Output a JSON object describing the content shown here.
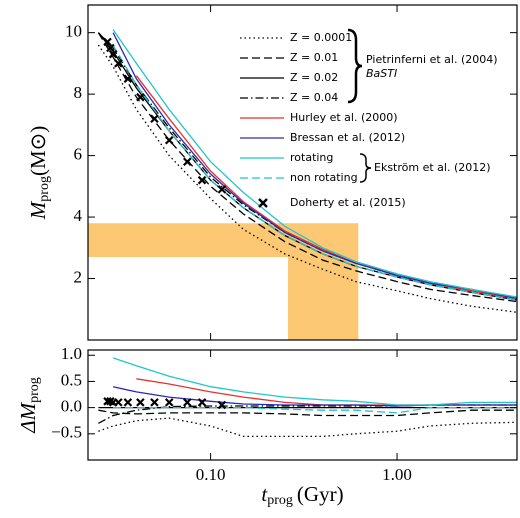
{
  "chart_data": [
    {
      "type": "line",
      "y_label": {
        "symbol": "M",
        "subscript": "prog",
        "unit": "(M⊙)"
      },
      "annotations": [
        "Pietrinferni et al. (2004)",
        "BaSTI",
        "Ekström et al. (2012)"
      ],
      "xlim": [
        0.022,
        4.4
      ],
      "ylim": [
        0,
        10.9
      ],
      "log_x": true,
      "xticks": [
        0.1,
        1
      ],
      "yticks": [
        2,
        4,
        6,
        8,
        10
      ],
      "shaded": {
        "color": "#fdc873",
        "mass_range": [
          2.7,
          3.8
        ],
        "age_range": [
          0.26,
          0.62
        ]
      },
      "x": [
        0.025,
        0.03,
        0.04,
        0.06,
        0.1,
        0.15,
        0.25,
        0.4,
        0.6,
        1.0,
        1.5,
        2.5,
        4.4
      ],
      "series": [
        {
          "name": "Z = 0.0001",
          "color": "#000000",
          "dash": "dotted",
          "values": [
            9.6,
            8.9,
            7.5,
            6.0,
            4.6,
            3.6,
            2.8,
            2.3,
            1.9,
            1.6,
            1.35,
            1.1,
            0.9
          ]
        },
        {
          "name": "Z = 0.01",
          "color": "#000000",
          "dash": "dashed",
          "values": [
            10.0,
            9.2,
            7.9,
            6.5,
            5.0,
            4.1,
            3.2,
            2.6,
            2.25,
            1.9,
            1.65,
            1.45,
            1.25
          ]
        },
        {
          "name": "Z = 0.02",
          "color": "#000000",
          "dash": "solid",
          "values": [
            10.0,
            9.4,
            8.2,
            6.8,
            5.2,
            4.3,
            3.4,
            2.8,
            2.4,
            2.05,
            1.8,
            1.55,
            1.3
          ]
        },
        {
          "name": "Z = 0.04",
          "color": "#000000",
          "dash": "dashdot",
          "values": [
            10.0,
            9.5,
            8.3,
            6.9,
            5.3,
            4.4,
            3.5,
            2.9,
            2.5,
            2.1,
            1.85,
            1.6,
            1.35
          ]
        },
        {
          "name": "Hurley et al. (2000)",
          "color": "#e8312f",
          "dash": "solid",
          "values": [
            null,
            null,
            8.6,
            7.2,
            5.5,
            4.5,
            3.55,
            2.95,
            2.5,
            2.15,
            1.85,
            1.6,
            1.35
          ]
        },
        {
          "name": "Bressan et al. (2012)",
          "color": "#2a2ab0",
          "dash": "solid",
          "values": [
            null,
            10.0,
            8.5,
            7.0,
            5.4,
            4.45,
            3.5,
            2.9,
            2.5,
            2.1,
            1.85,
            1.65,
            1.35
          ]
        },
        {
          "name": "rotating",
          "color": "#22c5c8",
          "dash": "solid",
          "values": [
            null,
            10.1,
            9.0,
            7.5,
            5.8,
            4.8,
            3.7,
            3.0,
            2.55,
            2.15,
            1.9,
            1.65,
            1.4
          ]
        },
        {
          "name": "non rotating",
          "color": "#22c5c8",
          "dash": "dashed",
          "values": [
            null,
            9.6,
            8.3,
            6.8,
            5.2,
            4.3,
            3.4,
            2.8,
            2.4,
            2.05,
            1.8,
            1.55,
            1.3
          ]
        },
        {
          "name": "Doherty et al. (2015)",
          "color": "#000000",
          "marker": "x",
          "x": [
            0.028,
            0.029,
            0.03,
            0.032,
            0.036,
            0.042,
            0.05,
            0.06,
            0.075,
            0.09,
            0.115
          ],
          "values": [
            9.7,
            9.5,
            9.3,
            9.0,
            8.5,
            7.9,
            7.2,
            6.5,
            5.8,
            5.2,
            4.9
          ]
        }
      ]
    },
    {
      "type": "line",
      "x_label": {
        "symbol": "t",
        "subscript": "prog",
        "unit": "(Gyr)"
      },
      "y_label": {
        "symbol": "ΔM",
        "subscript": "prog"
      },
      "xlim": [
        0.022,
        4.4
      ],
      "ylim": [
        -1.0,
        1.1
      ],
      "log_x": true,
      "xticks": [
        {
          "value": 0.1,
          "label": "0.10"
        },
        {
          "value": 1,
          "label": "1.00"
        }
      ],
      "yticks": [
        {
          "value": -0.5,
          "label": "−0.5"
        },
        {
          "value": 0,
          "label": "0.0"
        },
        {
          "value": 0.5,
          "label": "0.5"
        },
        {
          "value": 1.0,
          "label": "1.0"
        }
      ],
      "x": [
        0.025,
        0.03,
        0.04,
        0.06,
        0.1,
        0.15,
        0.25,
        0.4,
        0.6,
        1.0,
        1.5,
        2.5,
        4.4
      ],
      "series": [
        {
          "color": "#000000",
          "dash": "dotted",
          "values": [
            -0.45,
            -0.35,
            -0.25,
            -0.2,
            -0.35,
            -0.55,
            -0.55,
            -0.55,
            -0.5,
            -0.45,
            -0.35,
            -0.3,
            -0.28
          ]
        },
        {
          "color": "#000000",
          "dash": "dashed",
          "values": [
            -0.05,
            -0.1,
            -0.12,
            -0.1,
            -0.1,
            -0.1,
            -0.12,
            -0.15,
            -0.15,
            -0.15,
            -0.1,
            -0.05,
            -0.05
          ]
        },
        {
          "color": "#000000",
          "dash": "solid",
          "values": [
            0,
            0,
            0,
            0,
            0,
            0,
            0,
            0,
            0,
            0,
            0,
            0,
            0
          ]
        },
        {
          "color": "#000000",
          "dash": "dashdot",
          "values": [
            -0.3,
            -0.15,
            -0.05,
            0.02,
            0.03,
            0.03,
            0.03,
            0.03,
            0.03,
            0.03,
            0.05,
            0.05,
            0.05
          ]
        },
        {
          "color": "#e8312f",
          "dash": "solid",
          "values": [
            null,
            null,
            0.55,
            0.45,
            0.3,
            0.2,
            0.1,
            0.05,
            0.05,
            0.05,
            0.05,
            0.05,
            0.05
          ]
        },
        {
          "color": "#2a2ab0",
          "dash": "solid",
          "values": [
            null,
            0.4,
            0.3,
            0.2,
            0.12,
            0.07,
            0.05,
            0.05,
            0.05,
            0.03,
            0.05,
            0.05,
            0.05
          ]
        },
        {
          "color": "#22c5c8",
          "dash": "solid",
          "values": [
            null,
            0.95,
            0.8,
            0.6,
            0.4,
            0.3,
            0.2,
            0.15,
            0.12,
            0.05,
            0.05,
            0.1,
            0.1
          ]
        },
        {
          "color": "#22c5c8",
          "dash": "dashed",
          "values": [
            null,
            0,
            0,
            0,
            0,
            0,
            -0.03,
            -0.05,
            -0.05,
            -0.1,
            0,
            0,
            0
          ]
        },
        {
          "color": "#000000",
          "marker": "x",
          "x": [
            0.028,
            0.029,
            0.03,
            0.032,
            0.036,
            0.042,
            0.05,
            0.06,
            0.075,
            0.09,
            0.115
          ],
          "values": [
            0.12,
            0.12,
            0.1,
            0.1,
            0.1,
            0.1,
            0.1,
            0.1,
            0.1,
            0.1,
            0.05
          ]
        }
      ]
    }
  ]
}
